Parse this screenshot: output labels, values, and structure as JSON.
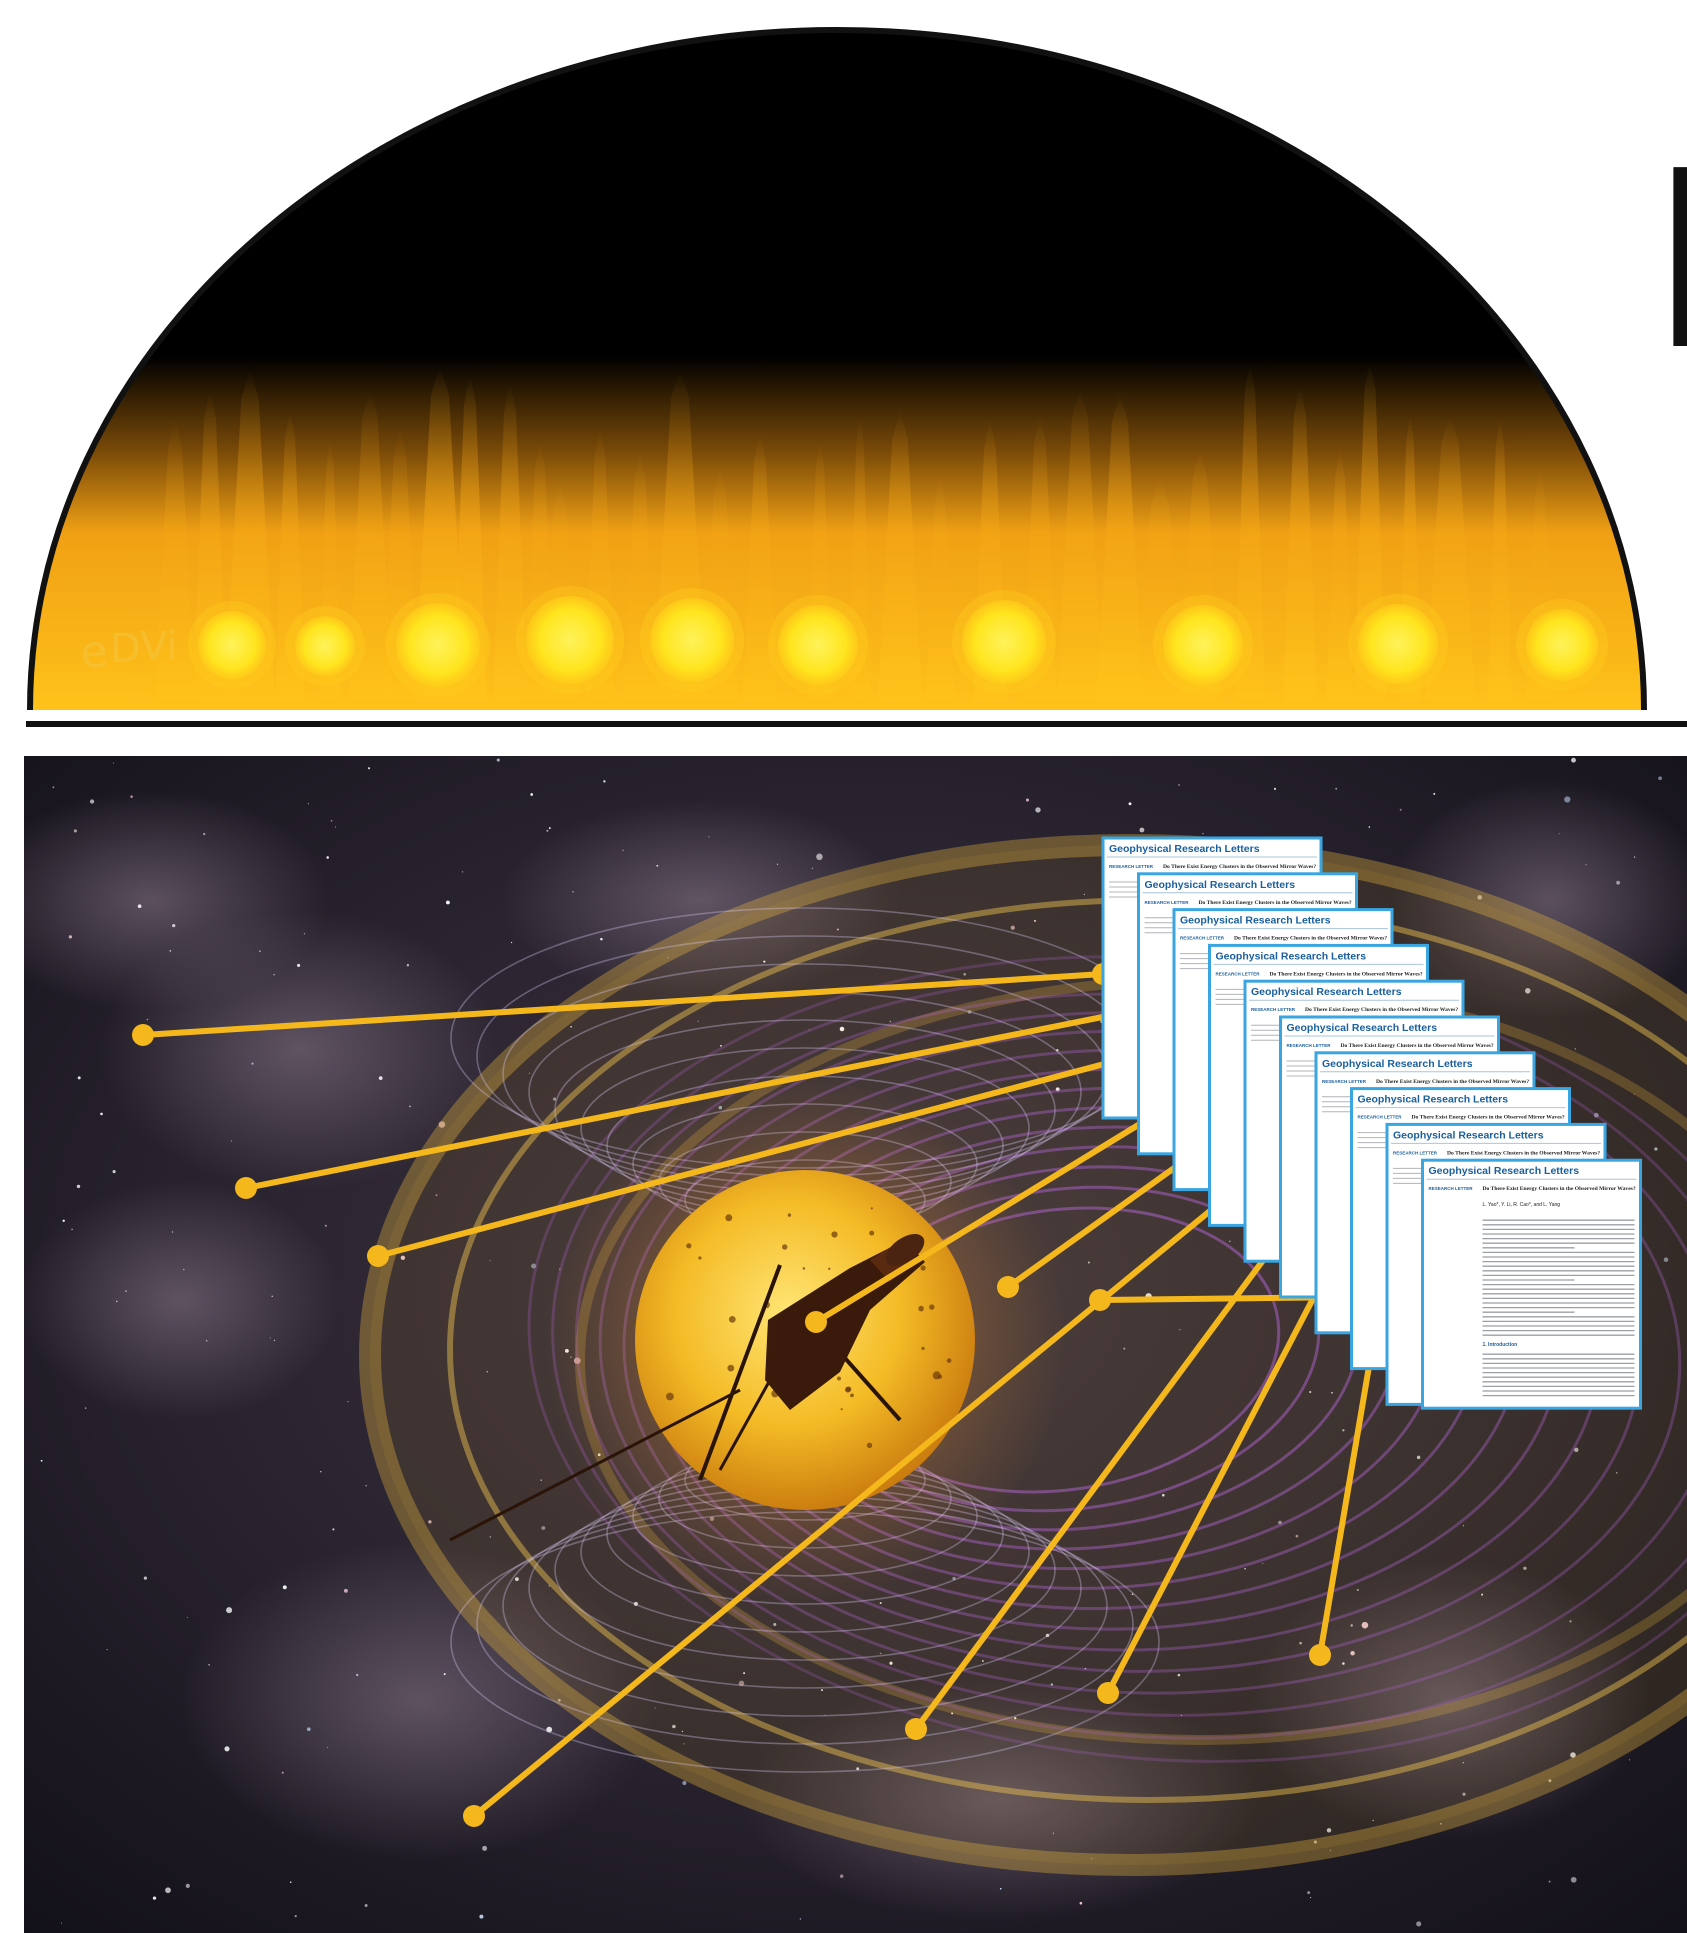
{
  "upper_panel": {
    "tick_labels": [
      "e",
      "D",
      "Vi"
    ],
    "colors": {
      "sky": "#000000",
      "plasma_dark": "#f09a10",
      "plasma_light": "#ffd21a",
      "blob": "#ffe81e"
    },
    "blob_count": 10
  },
  "lower_panel": {
    "background": "starfield",
    "sun_color": "#f2b51c",
    "field_line_color": "#b266d6",
    "connector_color": "#f5b81c",
    "connector_count": 10
  },
  "cut_letter": "E",
  "paper": {
    "journal": "Geophysical Research Letters",
    "section": "RESEARCH LETTER",
    "title": "Do There Exist Energy Clusters in the Observed Mirror Waves?",
    "authors": "L. Yao*, Y. Li, R. Cao*, and L. Yang",
    "intro_heading": "1. Introduction",
    "stack_count": 10,
    "border_color": "#39a6e2"
  }
}
